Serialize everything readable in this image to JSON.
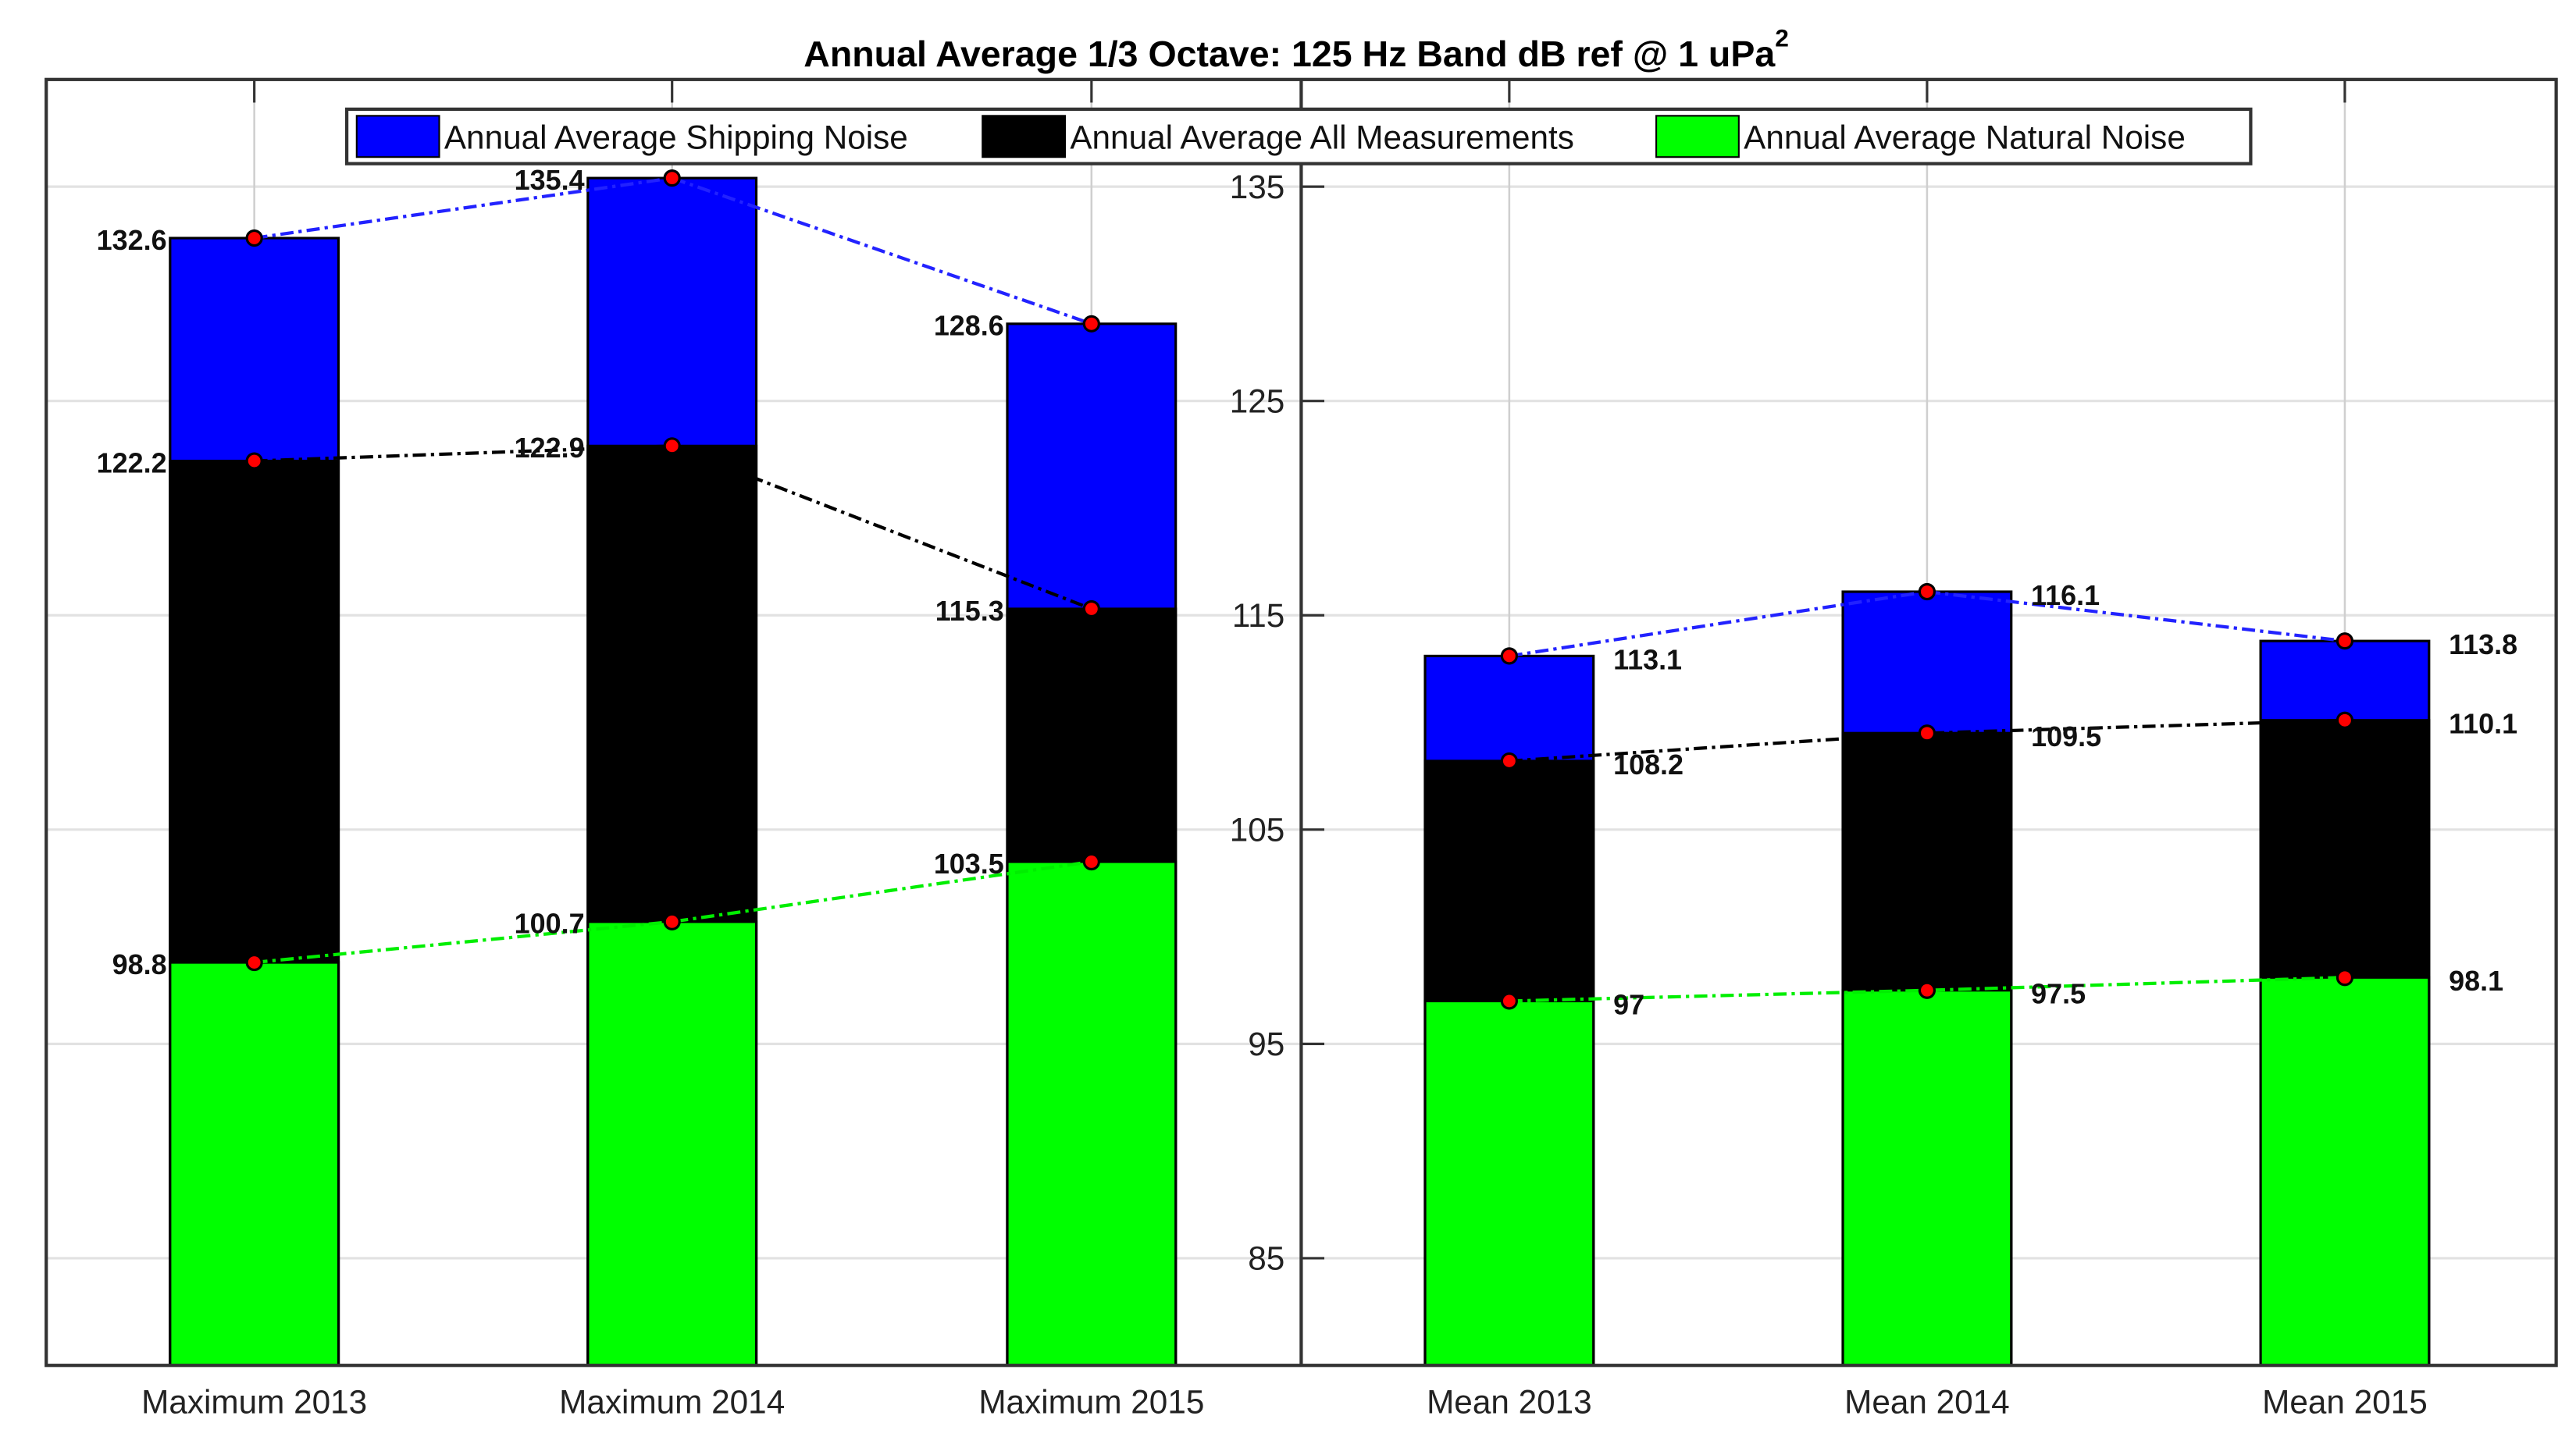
{
  "chart_data": {
    "type": "bar",
    "stacked_overlay": true,
    "title": "Annual Average 1/3 Octave: 125 Hz Band dB ref @ 1 uPa",
    "title_superscript": "2",
    "categories": [
      "Maximum 2013",
      "Maximum 2014",
      "Maximum 2015",
      "Mean 2013",
      "Mean 2014",
      "Mean 2015"
    ],
    "series": [
      {
        "name": "Annual Average Shipping Noise",
        "color": "#0000ff",
        "line_color": "#2222ff",
        "values": [
          132.6,
          135.4,
          128.6,
          113.1,
          116.1,
          113.8
        ],
        "labels": [
          "132.6",
          "135.4",
          "128.6",
          "113.1",
          "116.1",
          "113.8"
        ]
      },
      {
        "name": "Annual Average All Measurements",
        "color": "#000000",
        "line_color": "#000000",
        "values": [
          122.2,
          122.9,
          115.3,
          108.2,
          109.5,
          110.1
        ],
        "labels": [
          "122.2",
          "122.9",
          "115.3",
          "108.2",
          "109.5",
          "110.1"
        ]
      },
      {
        "name": "Annual Average Natural Noise",
        "color": "#00ff00",
        "line_color": "#00ee00",
        "values": [
          98.8,
          100.7,
          103.5,
          97,
          97.5,
          98.1
        ],
        "labels": [
          "98.8",
          "100.7",
          "103.5",
          "97",
          "97.5",
          "98.1"
        ]
      }
    ],
    "marker_color": "#ff0000",
    "ylim": [
      80,
      140
    ],
    "yticks": [
      "85",
      "95",
      "105",
      "115",
      "125",
      "135"
    ],
    "grid": true,
    "legend_placement": "top"
  }
}
